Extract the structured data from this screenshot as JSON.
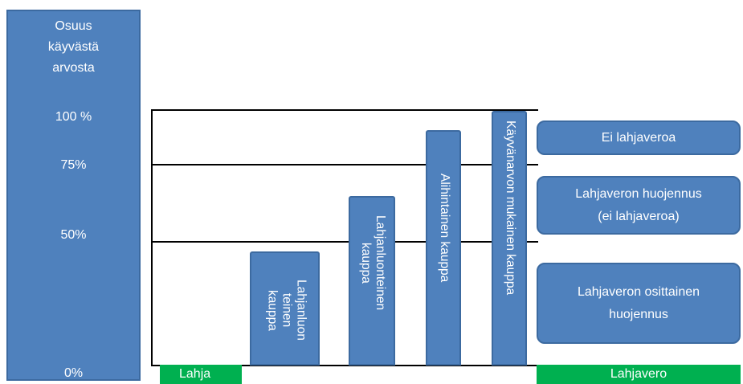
{
  "left_panel": {
    "title": "Osuus\nkäyvästä\narvosta",
    "pct_100": "100 %",
    "pct_75": "75%",
    "pct_50": "50%",
    "pct_0": "0%"
  },
  "bars": {
    "b1": "Lahjanluon\nteinen\nkauppa",
    "b2": "Lahjanluonteinen\nkauppa",
    "b3": "Alihintainen kauppa",
    "b4": "Käyvänarvon mukainen kauppa"
  },
  "boxes": {
    "ei": "Ei lahjaveroa",
    "huojennus": "Lahjaveron huojennus\n(ei lahjaveroa)",
    "osittainen": "Lahjaveron osittainen\nhuojennus"
  },
  "footer": {
    "lahja": "Lahja",
    "lahjavero": "Lahjavero"
  },
  "colors": {
    "box_blue": "#4f81bd",
    "green": "#00b050"
  }
}
